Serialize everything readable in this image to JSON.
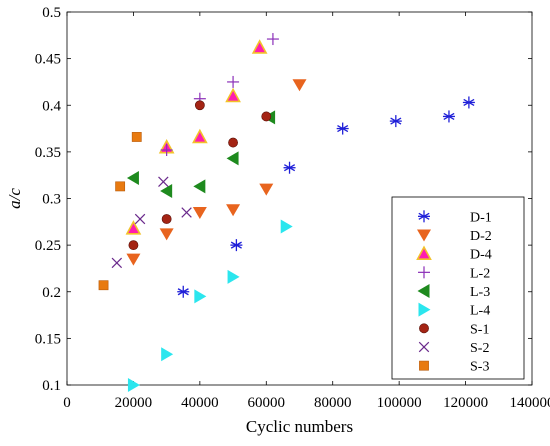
{
  "chart_data": {
    "type": "scatter",
    "title": "",
    "xlabel": "Cyclic numbers",
    "ylabel": "a/c",
    "xlim": [
      0,
      140000
    ],
    "ylim": [
      0.1,
      0.5
    ],
    "xticks": [
      0,
      20000,
      40000,
      60000,
      80000,
      100000,
      120000,
      140000
    ],
    "xtick_labels": [
      "0",
      "20000",
      "40000",
      "60000",
      "80000",
      "100000",
      "120000",
      "140000"
    ],
    "yticks": [
      0.1,
      0.15,
      0.2,
      0.25,
      0.3,
      0.35,
      0.4,
      0.45,
      0.5
    ],
    "ytick_labels": [
      "0.1",
      "0.15",
      "0.2",
      "0.25",
      "0.3",
      "0.35",
      "0.4",
      "0.45",
      "0.5"
    ],
    "grid": false,
    "legend_position": "lower-right",
    "series": [
      {
        "name": "D-1",
        "marker": "asterisk",
        "color": "#1f1fd8",
        "points": [
          [
            35000,
            0.2
          ],
          [
            51000,
            0.25
          ],
          [
            67000,
            0.333
          ],
          [
            83000,
            0.375
          ],
          [
            99000,
            0.383
          ],
          [
            115000,
            0.388
          ],
          [
            121000,
            0.403
          ]
        ]
      },
      {
        "name": "D-2",
        "marker": "triangle-down",
        "color": "#e8641e",
        "points": [
          [
            20000,
            0.235
          ],
          [
            30000,
            0.262
          ],
          [
            40000,
            0.285
          ],
          [
            50000,
            0.288
          ],
          [
            60000,
            0.31
          ],
          [
            70000,
            0.422
          ]
        ]
      },
      {
        "name": "D-4",
        "marker": "triangle-up",
        "color": "#ff1cb0",
        "edge": "#f2c22a",
        "points": [
          [
            20000,
            0.268
          ],
          [
            30000,
            0.355
          ],
          [
            40000,
            0.366
          ],
          [
            50000,
            0.41
          ],
          [
            58000,
            0.462
          ]
        ]
      },
      {
        "name": "L-2",
        "marker": "plus",
        "color": "#8b2fb8",
        "points": [
          [
            30000,
            0.352
          ],
          [
            40000,
            0.407
          ],
          [
            50000,
            0.425
          ],
          [
            62000,
            0.471
          ]
        ]
      },
      {
        "name": "L-3",
        "marker": "triangle-left",
        "color": "#1e8a1e",
        "points": [
          [
            20000,
            0.322
          ],
          [
            30000,
            0.308
          ],
          [
            40000,
            0.313
          ],
          [
            50000,
            0.343
          ],
          [
            61000,
            0.387
          ]
        ]
      },
      {
        "name": "L-4",
        "marker": "triangle-right",
        "color": "#2be6ee",
        "points": [
          [
            20000,
            0.1
          ],
          [
            30000,
            0.133
          ],
          [
            40000,
            0.195
          ],
          [
            50000,
            0.216
          ],
          [
            66000,
            0.27
          ]
        ]
      },
      {
        "name": "S-1",
        "marker": "circle",
        "color": "#a42414",
        "points": [
          [
            20000,
            0.25
          ],
          [
            30000,
            0.278
          ],
          [
            40000,
            0.4
          ],
          [
            50000,
            0.36
          ],
          [
            60000,
            0.388
          ]
        ]
      },
      {
        "name": "S-2",
        "marker": "x",
        "color": "#6a2a8c",
        "points": [
          [
            15000,
            0.231
          ],
          [
            22000,
            0.278
          ],
          [
            29000,
            0.318
          ],
          [
            36000,
            0.285
          ]
        ]
      },
      {
        "name": "S-3",
        "marker": "square",
        "color": "#e87a10",
        "points": [
          [
            11000,
            0.207
          ],
          [
            16000,
            0.313
          ],
          [
            21000,
            0.366
          ]
        ]
      }
    ]
  }
}
